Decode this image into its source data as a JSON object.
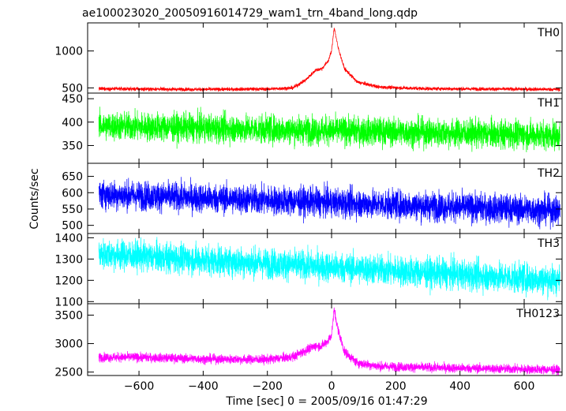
{
  "chart_data": {
    "type": "line",
    "title": "ae100023020_20050916014729_wam1_trn_4band_long.qdp",
    "xlabel": "Time [sec] 0 = 2005/09/16 01:47:29",
    "ylabel": "Counts/sec",
    "xlim": [
      -760,
      718
    ],
    "x_ticks": [
      -600,
      -400,
      -200,
      0,
      200,
      400,
      600
    ],
    "x_tick_labels": [
      "−600",
      "−400",
      "−200",
      "0",
      "200",
      "400",
      "600"
    ],
    "grid": false,
    "panels": [
      {
        "name": "TH0",
        "color": "#ff0000",
        "ylim": [
          430,
          1380
        ],
        "y_ticks": [
          500,
          1000
        ],
        "y_tick_labels": [
          "500",
          "1000"
        ],
        "x": [
          -725,
          -600,
          -400,
          -200,
          -120,
          -80,
          -50,
          -30,
          -10,
          0,
          8,
          20,
          40,
          80,
          150,
          300,
          500,
          712
        ],
        "y": [
          490,
          485,
          480,
          485,
          500,
          610,
          740,
          760,
          870,
          1000,
          1320,
          1050,
          760,
          580,
          510,
          490,
          485,
          480
        ],
        "noise": 12
      },
      {
        "name": "TH1",
        "color": "#00ff00",
        "ylim": [
          312,
          462
        ],
        "y_ticks": [
          350,
          400,
          450
        ],
        "y_tick_labels": [
          "350",
          "400",
          "450"
        ],
        "x": [
          -725,
          712
        ],
        "y": [
          392,
          372
        ],
        "noise": 15
      },
      {
        "name": "TH2",
        "color": "#0000ff",
        "ylim": [
          475,
          690
        ],
        "y_ticks": [
          500,
          550,
          600,
          650
        ],
        "y_tick_labels": [
          "500",
          "550",
          "600",
          "650"
        ],
        "x": [
          -725,
          712
        ],
        "y": [
          595,
          545
        ],
        "noise": 22
      },
      {
        "name": "TH3",
        "color": "#00ffff",
        "ylim": [
          1090,
          1420
        ],
        "y_ticks": [
          1100,
          1200,
          1300,
          1400
        ],
        "y_tick_labels": [
          "1100",
          "1200",
          "1300",
          "1400"
        ],
        "x": [
          -725,
          712
        ],
        "y": [
          1325,
          1200
        ],
        "noise": 35
      },
      {
        "name": "TH0123",
        "color": "#ff00ff",
        "ylim": [
          2440,
          3700
        ],
        "y_ticks": [
          2500,
          3000,
          3500
        ],
        "y_tick_labels": [
          "2500",
          "3000",
          "3500"
        ],
        "x": [
          -725,
          -600,
          -400,
          -200,
          -120,
          -80,
          -50,
          -30,
          -10,
          0,
          8,
          20,
          40,
          80,
          150,
          300,
          500,
          712
        ],
        "y": [
          2760,
          2760,
          2730,
          2720,
          2770,
          2880,
          2960,
          2960,
          3060,
          3150,
          3600,
          3250,
          2860,
          2660,
          2600,
          2580,
          2560,
          2540
        ],
        "noise": 40
      }
    ]
  }
}
